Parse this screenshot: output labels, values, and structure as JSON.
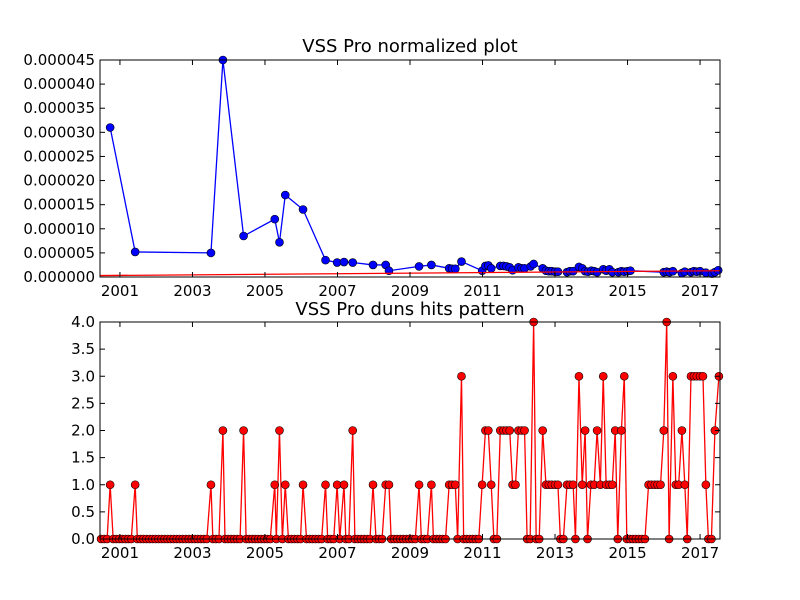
{
  "chart_data": [
    {
      "type": "line",
      "title": "VSS Pro normalized plot",
      "xlabel": "",
      "ylabel": "",
      "xlim": [
        2000.45,
        2017.55
      ],
      "ylim": [
        0,
        4.5e-05
      ],
      "x_ticks": [
        2001,
        2003,
        2005,
        2007,
        2009,
        2011,
        2013,
        2015,
        2017
      ],
      "y_ticks": [
        "0.000000",
        "0.000005",
        "0.000010",
        "0.000015",
        "0.000020",
        "0.000025",
        "0.000030",
        "0.000035",
        "0.000040",
        "0.000045"
      ],
      "grid": false,
      "series": [
        {
          "color": "#0000ff",
          "marker": "circle",
          "x": [
            2000.73,
            2001.42,
            2003.51,
            2003.84,
            2004.41,
            2005.27,
            2005.4,
            2005.56,
            2006.05,
            2006.67,
            2006.99,
            2007.18,
            2007.42,
            2007.98,
            2008.33,
            2008.42,
            2009.25,
            2009.59,
            2010.08,
            2010.16,
            2010.25,
            2010.42,
            2010.99,
            2011.08,
            2011.16,
            2011.24,
            2011.49,
            2011.58,
            2011.66,
            2011.75,
            2011.83,
            2011.99,
            2012.08,
            2012.16,
            2012.33,
            2012.41,
            2012.66,
            2012.75,
            2012.83,
            2012.91,
            2013.0,
            2013.08,
            2013.33,
            2013.41,
            2013.5,
            2013.66,
            2013.75,
            2013.83,
            2013.91,
            2014.0,
            2014.08,
            2014.16,
            2014.33,
            2014.41,
            2014.5,
            2014.58,
            2014.75,
            2014.83,
            2014.91,
            2015.0,
            2015.08,
            2016.0,
            2016.08,
            2016.16,
            2016.25,
            2016.5,
            2016.58,
            2016.75,
            2016.83,
            2016.91,
            2017.0,
            2017.16,
            2017.33,
            2017.41,
            2017.5
          ],
          "y": [
            3.1e-05,
            5.2e-06,
            5e-06,
            4.5e-05,
            8.5e-06,
            1.2e-05,
            7.2e-06,
            1.7e-05,
            1.4e-05,
            3.5e-06,
            3e-06,
            3.1e-06,
            3e-06,
            2.5e-06,
            2.5e-06,
            1.3e-06,
            2.2e-06,
            2.5e-06,
            1.8e-06,
            1.7e-06,
            1.7e-06,
            3.2e-06,
            1.3e-06,
            2.3e-06,
            2.4e-06,
            1.8e-06,
            2.3e-06,
            2.3e-06,
            2.2e-06,
            2e-06,
            1.4e-06,
            2e-06,
            1.8e-06,
            1.8e-06,
            2.2e-06,
            2.7e-06,
            1.8e-06,
            1.3e-06,
            1.2e-06,
            1.2e-06,
            1.1e-06,
            1.1e-06,
            1e-06,
            1.2e-06,
            1.2e-06,
            2.1e-06,
            1.8e-06,
            1.2e-06,
            1.1e-06,
            1.3e-06,
            1.2e-06,
            1e-06,
            1.6e-06,
            1.3e-06,
            1.6e-06,
            1e-06,
            1e-06,
            1.2e-06,
            1.1e-06,
            1.2e-06,
            1.3e-06,
            1e-06,
            1.1e-06,
            1e-06,
            1.2e-06,
            8e-07,
            1.1e-06,
            1e-06,
            1.2e-06,
            1.1e-06,
            1.2e-06,
            9e-07,
            7e-07,
            1e-06,
            1.4e-06
          ]
        },
        {
          "color": "#ff0000",
          "marker": "none",
          "x": [
            2000.45,
            2017.55
          ],
          "y": [
            3e-07,
            1.3e-06
          ]
        }
      ]
    },
    {
      "type": "line",
      "title": "VSS Pro duns hits pattern",
      "xlabel": "",
      "ylabel": "",
      "xlim": [
        2000.45,
        2017.55
      ],
      "ylim": [
        0,
        4
      ],
      "x_ticks": [
        2001,
        2003,
        2005,
        2007,
        2009,
        2011,
        2013,
        2015,
        2017
      ],
      "y_ticks": [
        "0.0",
        "0.5",
        "1.0",
        "1.5",
        "2.0",
        "2.5",
        "3.0",
        "3.5",
        "4.0"
      ],
      "grid": false,
      "series": [
        {
          "color": "#ff0000",
          "marker": "circle",
          "start": 2000.48,
          "step": 0.0833333,
          "points": [
            [
              2000.73,
              1
            ],
            [
              2001.42,
              1
            ],
            [
              2003.51,
              1
            ],
            [
              2003.84,
              2
            ],
            [
              2004.41,
              2
            ],
            [
              2005.27,
              1
            ],
            [
              2005.4,
              2
            ],
            [
              2005.56,
              1
            ],
            [
              2006.05,
              1
            ],
            [
              2006.67,
              1
            ],
            [
              2006.99,
              1
            ],
            [
              2007.18,
              1
            ],
            [
              2007.42,
              2
            ],
            [
              2007.98,
              1
            ],
            [
              2008.33,
              1
            ],
            [
              2008.42,
              1
            ],
            [
              2009.25,
              1
            ],
            [
              2009.59,
              1
            ],
            [
              2010.08,
              1
            ],
            [
              2010.16,
              1
            ],
            [
              2010.25,
              1
            ],
            [
              2010.42,
              3
            ],
            [
              2010.99,
              1
            ],
            [
              2011.08,
              2
            ],
            [
              2011.16,
              2
            ],
            [
              2011.24,
              1
            ],
            [
              2011.49,
              2
            ],
            [
              2011.58,
              2
            ],
            [
              2011.66,
              2
            ],
            [
              2011.75,
              2
            ],
            [
              2011.83,
              1
            ],
            [
              2011.91,
              1
            ],
            [
              2011.99,
              2
            ],
            [
              2012.08,
              2
            ],
            [
              2012.16,
              2
            ],
            [
              2012.41,
              4
            ],
            [
              2012.66,
              2
            ],
            [
              2012.75,
              1
            ],
            [
              2012.83,
              1
            ],
            [
              2012.91,
              1
            ],
            [
              2013.0,
              1
            ],
            [
              2013.08,
              1
            ],
            [
              2013.33,
              1
            ],
            [
              2013.41,
              1
            ],
            [
              2013.5,
              1
            ],
            [
              2013.66,
              3
            ],
            [
              2013.75,
              1
            ],
            [
              2013.83,
              2
            ],
            [
              2013.99,
              1
            ],
            [
              2014.08,
              1
            ],
            [
              2014.16,
              2
            ],
            [
              2014.25,
              1
            ],
            [
              2014.33,
              3
            ],
            [
              2014.41,
              1
            ],
            [
              2014.5,
              1
            ],
            [
              2014.58,
              1
            ],
            [
              2014.66,
              2
            ],
            [
              2014.83,
              2
            ],
            [
              2014.91,
              3
            ],
            [
              2015.58,
              1
            ],
            [
              2015.66,
              1
            ],
            [
              2015.75,
              1
            ],
            [
              2015.83,
              1
            ],
            [
              2015.91,
              1
            ],
            [
              2016.0,
              2
            ],
            [
              2016.08,
              4
            ],
            [
              2016.25,
              3
            ],
            [
              2016.33,
              1
            ],
            [
              2016.41,
              1
            ],
            [
              2016.5,
              2
            ],
            [
              2016.58,
              1
            ],
            [
              2016.75,
              3
            ],
            [
              2016.83,
              3
            ],
            [
              2016.91,
              3
            ],
            [
              2017.0,
              3
            ],
            [
              2017.08,
              3
            ],
            [
              2017.16,
              1
            ],
            [
              2017.41,
              2
            ],
            [
              2017.52,
              3
            ]
          ]
        }
      ]
    }
  ]
}
